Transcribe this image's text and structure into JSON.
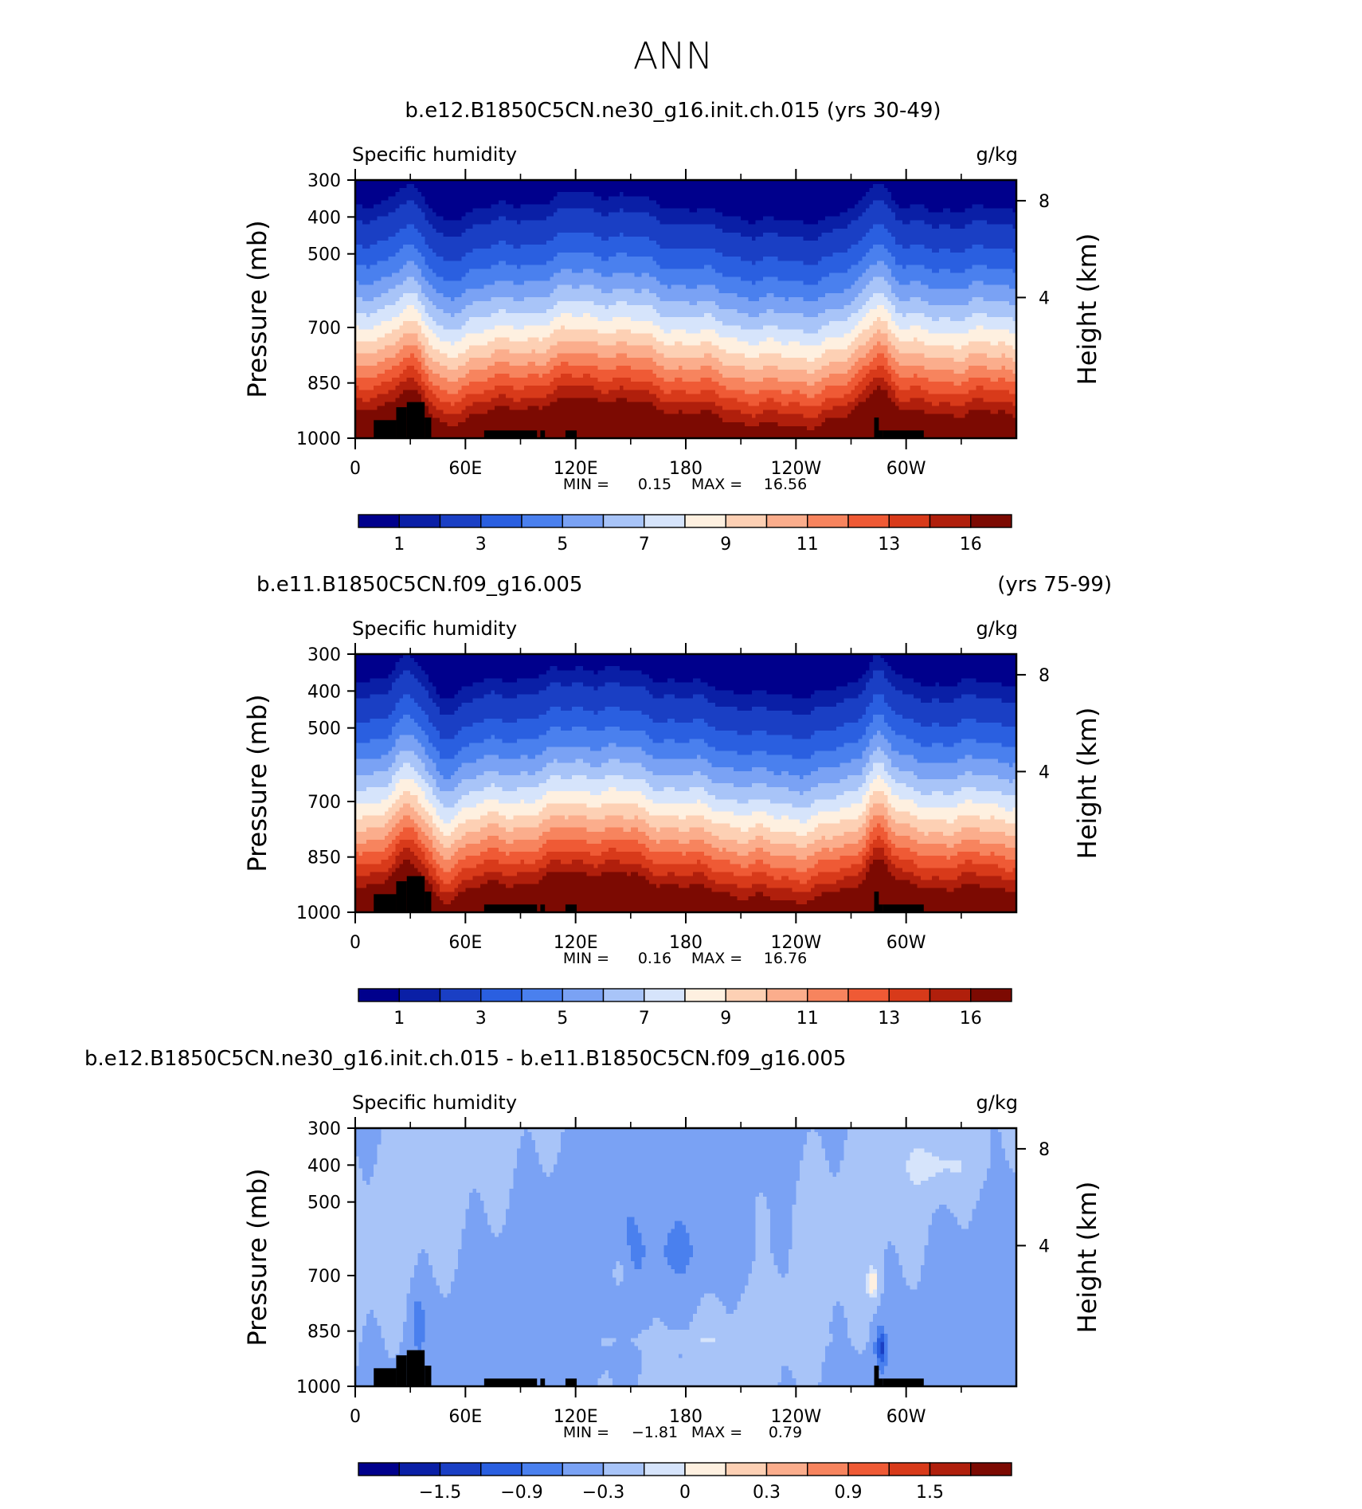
{
  "main_title": "ANN",
  "chart_data": [
    {
      "type": "heatmap",
      "title": "b.e12.B1850C5CN.ne30_g16.init.ch.015 (yrs 30-49)",
      "title_left": "",
      "title_right": "",
      "left_string": "Specific humidity",
      "right_string": "g/kg",
      "ylabel": "Pressure (mb)",
      "ylabel_right": "Height (km)",
      "y_ticks": [
        "300",
        "400",
        "500",
        "700",
        "850",
        "1000"
      ],
      "y_ticks_right": [
        "8",
        "4"
      ],
      "x_ticks": [
        "0",
        "60E",
        "120E",
        "180",
        "120W",
        "60W"
      ],
      "stats": {
        "min_label": "MIN =",
        "min": "0.15",
        "max_label": "MAX =",
        "max": "16.56"
      },
      "colorbar": {
        "colors": [
          "#00008c",
          "#0a1fa6",
          "#1a3fc4",
          "#2a5fe0",
          "#4a80ee",
          "#7aa2f4",
          "#a8c4f8",
          "#d6e4fb",
          "#fef0e0",
          "#fdd0b4",
          "#fbad8c",
          "#f7845e",
          "#ef5a35",
          "#d83a1a",
          "#b01f0c",
          "#7c0a02"
        ],
        "labels": [
          "1",
          "3",
          "5",
          "7",
          "9",
          "11",
          "13",
          "16"
        ]
      },
      "field": "humidity",
      "seed": 1
    },
    {
      "type": "heatmap",
      "title": "",
      "title_left": "b.e11.B1850C5CN.f09_g16.005",
      "title_right": "(yrs 75-99)",
      "left_string": "Specific humidity",
      "right_string": "g/kg",
      "ylabel": "Pressure (mb)",
      "ylabel_right": "Height (km)",
      "y_ticks": [
        "300",
        "400",
        "500",
        "700",
        "850",
        "1000"
      ],
      "y_ticks_right": [
        "8",
        "4"
      ],
      "x_ticks": [
        "0",
        "60E",
        "120E",
        "180",
        "120W",
        "60W"
      ],
      "stats": {
        "min_label": "MIN =",
        "min": "0.16",
        "max_label": "MAX =",
        "max": "16.76"
      },
      "colorbar": {
        "colors": [
          "#00008c",
          "#0a1fa6",
          "#1a3fc4",
          "#2a5fe0",
          "#4a80ee",
          "#7aa2f4",
          "#a8c4f8",
          "#d6e4fb",
          "#fef0e0",
          "#fdd0b4",
          "#fbad8c",
          "#f7845e",
          "#ef5a35",
          "#d83a1a",
          "#b01f0c",
          "#7c0a02"
        ],
        "labels": [
          "1",
          "3",
          "5",
          "7",
          "9",
          "11",
          "13",
          "16"
        ]
      },
      "field": "humidity",
      "seed": 2
    },
    {
      "type": "heatmap",
      "title": "",
      "title_left": "b.e12.B1850C5CN.ne30_g16.init.ch.015 - b.e11.B1850C5CN.f09_g16.005",
      "title_right": "",
      "left_string": "Specific humidity",
      "right_string": "g/kg",
      "ylabel": "Pressure (mb)",
      "ylabel_right": "Height (km)",
      "y_ticks": [
        "300",
        "400",
        "500",
        "700",
        "850",
        "1000"
      ],
      "y_ticks_right": [
        "8",
        "4"
      ],
      "x_ticks": [
        "0",
        "60E",
        "120E",
        "180",
        "120W",
        "60W"
      ],
      "stats": {
        "min_label": "MIN =",
        "min": "−1.81",
        "max_label": "MAX =",
        "max": "0.79"
      },
      "colorbar": {
        "colors": [
          "#00008c",
          "#0a1fa6",
          "#1a3fc4",
          "#2a5fe0",
          "#4a80ee",
          "#7aa2f4",
          "#a8c4f8",
          "#d6e4fb",
          "#fef0e0",
          "#fdd0b4",
          "#fbad8c",
          "#f7845e",
          "#ef5a35",
          "#d83a1a",
          "#b01f0c",
          "#7c0a02"
        ],
        "labels": [
          "−1.5",
          "−0.9",
          "−0.3",
          "0",
          "0.3",
          "0.9",
          "1.5"
        ]
      },
      "field": "difference",
      "seed": 3
    }
  ]
}
